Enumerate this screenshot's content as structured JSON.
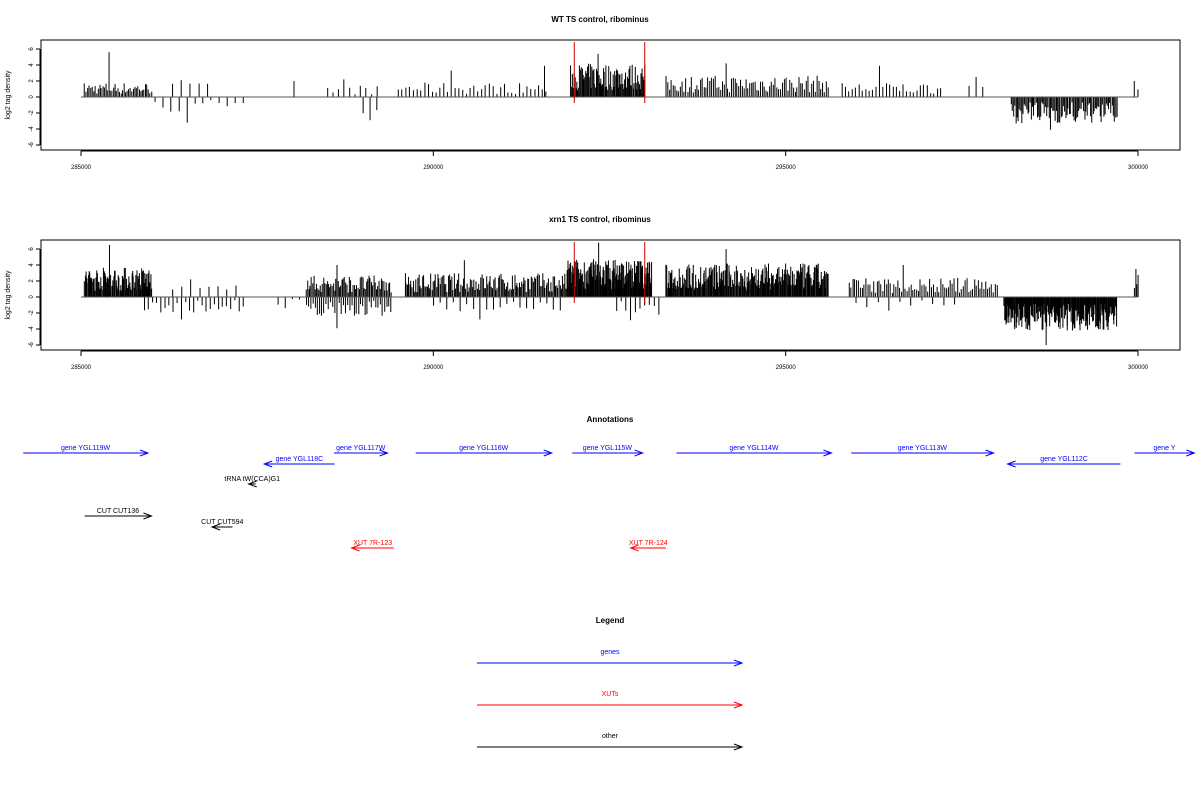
{
  "chart_data": [
    {
      "type": "bar",
      "title": "WT TS control, ribominus",
      "ylabel": "log2 tag density",
      "xlim": [
        285000,
        300000
      ],
      "ylim": [
        -6,
        6
      ],
      "x_ticks": [
        285000,
        290000,
        295000,
        300000
      ],
      "y_ticks": [
        -6,
        -4,
        -2,
        0,
        2,
        4,
        6
      ],
      "baseline": 0,
      "markers": [
        292000,
        293000
      ],
      "marker_color": "#cc0000",
      "bar_color": "#000000",
      "regions": [
        {
          "from": 285050,
          "to": 286000,
          "mean": 1.2,
          "peak": 5.6,
          "count": 45,
          "sign": 1
        },
        {
          "from": 286050,
          "to": 287300,
          "mean": -1.3,
          "peak": -3.2,
          "count": 12,
          "sign": -1
        },
        {
          "from": 286300,
          "to": 286800,
          "mean": 1.2,
          "peak": 2.1,
          "count": 5,
          "sign": 1
        },
        {
          "from": 288000,
          "to": 288050,
          "mean": 1.6,
          "peak": 2.0,
          "count": 1,
          "sign": 1
        },
        {
          "from": 288500,
          "to": 289200,
          "mean": 1.0,
          "peak": 2.2,
          "count": 10,
          "sign": 1
        },
        {
          "from": 289000,
          "to": 289200,
          "mean": -1.4,
          "peak": -2.9,
          "count": 3,
          "sign": -1
        },
        {
          "from": 289500,
          "to": 291600,
          "mean": 1.2,
          "peak": 3.3,
          "count": 40,
          "sign": 1
        },
        {
          "from": 291550,
          "to": 291600,
          "mean": 3.2,
          "peak": 3.9,
          "count": 1,
          "sign": 1
        },
        {
          "from": 291950,
          "to": 293000,
          "mean": 2.8,
          "peak": 5.4,
          "count": 85,
          "sign": 1
        },
        {
          "from": 293300,
          "to": 295600,
          "mean": 1.8,
          "peak": 4.2,
          "count": 90,
          "sign": 1
        },
        {
          "from": 295800,
          "to": 297200,
          "mean": 1.2,
          "peak": 3.9,
          "count": 30,
          "sign": 1
        },
        {
          "from": 297600,
          "to": 297800,
          "mean": 1.2,
          "peak": 2.5,
          "count": 3,
          "sign": 1
        },
        {
          "from": 298200,
          "to": 299700,
          "mean": -2.2,
          "peak": -4.1,
          "count": 90,
          "sign": -1
        },
        {
          "from": 299950,
          "to": 300000,
          "mean": 1.5,
          "peak": 2.0,
          "count": 2,
          "sign": 1
        }
      ]
    },
    {
      "type": "bar",
      "title": "xrn1 TS control, ribominus",
      "ylabel": "log2 tag density",
      "xlim": [
        285000,
        300000
      ],
      "ylim": [
        -6,
        6
      ],
      "x_ticks": [
        285000,
        290000,
        295000,
        300000
      ],
      "y_ticks": [
        -6,
        -4,
        -2,
        0,
        2,
        4,
        6
      ],
      "baseline": 0,
      "markers": [
        292000,
        293000
      ],
      "marker_color": "#cc0000",
      "bar_color": "#000000",
      "regions": [
        {
          "from": 285050,
          "to": 286000,
          "mean": 2.5,
          "peak": 6.5,
          "count": 90,
          "sign": 1
        },
        {
          "from": 285900,
          "to": 287300,
          "mean": -1.3,
          "peak": -2.8,
          "count": 25,
          "sign": -1
        },
        {
          "from": 286300,
          "to": 287200,
          "mean": 1.0,
          "peak": 2.2,
          "count": 8,
          "sign": 1
        },
        {
          "from": 287800,
          "to": 288200,
          "mean": -0.8,
          "peak": -1.4,
          "count": 5,
          "sign": -1
        },
        {
          "from": 288200,
          "to": 289400,
          "mean": 1.8,
          "peak": 4.0,
          "count": 70,
          "sign": 1
        },
        {
          "from": 288200,
          "to": 289400,
          "mean": -1.6,
          "peak": -3.9,
          "count": 40,
          "sign": -1
        },
        {
          "from": 289600,
          "to": 291900,
          "mean": 2.0,
          "peak": 4.6,
          "count": 140,
          "sign": 1
        },
        {
          "from": 290000,
          "to": 291800,
          "mean": -1.2,
          "peak": -2.8,
          "count": 20,
          "sign": -1
        },
        {
          "from": 291900,
          "to": 293100,
          "mean": 3.2,
          "peak": 6.8,
          "count": 150,
          "sign": 1
        },
        {
          "from": 292600,
          "to": 293200,
          "mean": -1.5,
          "peak": -2.9,
          "count": 10,
          "sign": -1
        },
        {
          "from": 293300,
          "to": 295600,
          "mean": 2.8,
          "peak": 6.0,
          "count": 220,
          "sign": 1
        },
        {
          "from": 295900,
          "to": 298000,
          "mean": 1.6,
          "peak": 4.0,
          "count": 80,
          "sign": 1
        },
        {
          "from": 296000,
          "to": 297400,
          "mean": -0.9,
          "peak": -1.7,
          "count": 10,
          "sign": -1
        },
        {
          "from": 298100,
          "to": 299700,
          "mean": -2.8,
          "peak": -6.0,
          "count": 200,
          "sign": -1
        },
        {
          "from": 299950,
          "to": 300000,
          "mean": 2.0,
          "peak": 3.5,
          "count": 4,
          "sign": 1
        }
      ]
    }
  ],
  "annotations": {
    "title": "Annotations",
    "xlim": [
      285000,
      300000
    ],
    "features": [
      {
        "label": "gene YGL119W",
        "start": 284180,
        "end": 285950,
        "strand": "+",
        "color": "#0000ff",
        "row": 0
      },
      {
        "label": "gene YGL118C",
        "start": 287600,
        "end": 288600,
        "strand": "-",
        "color": "#0000ff",
        "row": 1
      },
      {
        "label": "gene YGL117W",
        "start": 288590,
        "end": 289350,
        "strand": "+",
        "color": "#0000ff",
        "row": 0
      },
      {
        "label": "gene YGL116W",
        "start": 289750,
        "end": 291680,
        "strand": "+",
        "color": "#0000ff",
        "row": 0
      },
      {
        "label": "gene YGL115W",
        "start": 291970,
        "end": 292970,
        "strand": "+",
        "color": "#0000ff",
        "row": 0
      },
      {
        "label": "gene YGL114W",
        "start": 293450,
        "end": 295650,
        "strand": "+",
        "color": "#0000ff",
        "row": 0
      },
      {
        "label": "gene YGL113W",
        "start": 295930,
        "end": 297950,
        "strand": "+",
        "color": "#0000ff",
        "row": 0
      },
      {
        "label": "gene YGL112C",
        "start": 298150,
        "end": 299750,
        "strand": "-",
        "color": "#0000ff",
        "row": 1
      },
      {
        "label": "gene Y",
        "start": 299950,
        "end": 300800,
        "strand": "+",
        "color": "#0000ff",
        "row": 0
      },
      {
        "label": "tRNA tW(CCA)G1",
        "start": 287380,
        "end": 287480,
        "strand": "-",
        "color": "#000000",
        "row": 2
      },
      {
        "label": "CUT CUT136",
        "start": 285050,
        "end": 286000,
        "strand": "+",
        "color": "#000000",
        "row": 3
      },
      {
        "label": "CUT CUT594",
        "start": 286860,
        "end": 287150,
        "strand": "-",
        "color": "#000000",
        "row": 4
      },
      {
        "label": "XUT 7R-123",
        "start": 288840,
        "end": 289440,
        "strand": "-",
        "color": "#ff0000",
        "row": 5
      },
      {
        "label": "XUT 7R-124",
        "start": 292800,
        "end": 293300,
        "strand": "-",
        "color": "#ff0000",
        "row": 5
      }
    ]
  },
  "legend": {
    "title": "Legend",
    "items": [
      {
        "label": "genes",
        "color": "#0000ff"
      },
      {
        "label": "XUTs",
        "color": "#ff0000"
      },
      {
        "label": "other",
        "color": "#000000"
      }
    ]
  }
}
